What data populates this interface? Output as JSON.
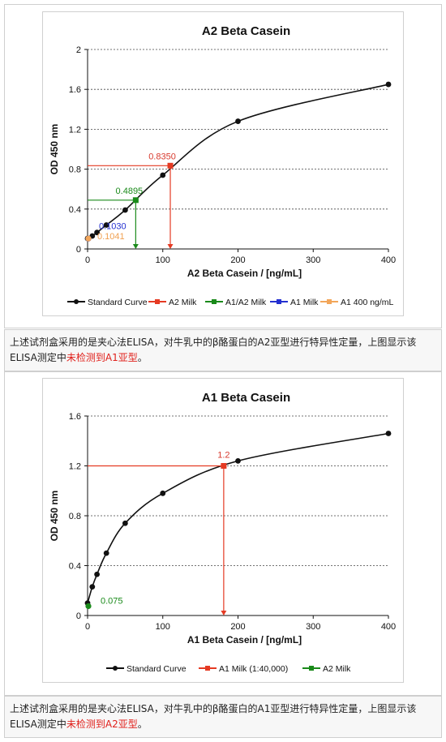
{
  "charts": [
    {
      "title": "A2 Beta Casein",
      "caption_main": "上述试剂盒采用的是夹心法ELISA，对牛乳中的β酪蛋白的A2亚型进行特异性定量，上图显示该ELISA测定中",
      "caption_red": "未检测到A1亚型",
      "caption_tail": "。"
    },
    {
      "title": "A1 Beta Casein",
      "caption_main": "上述试剂盒采用的是夹心法ELISA，对牛乳中的β酪蛋白的A1亚型进行特异性定量，上图显示该ELISA测定中",
      "caption_red": "未检测到A2亚型",
      "caption_tail": "。"
    }
  ],
  "chart_data": [
    {
      "type": "line",
      "title": "A2 Beta Casein",
      "xlabel": "A2 Beta Casein / [ng/mL]",
      "ylabel": "OD 450 nm",
      "xlim": [
        0,
        400
      ],
      "ylim": [
        0,
        2
      ],
      "x_ticks": [
        "0",
        "100",
        "200",
        "300",
        "400"
      ],
      "y_ticks": [
        "0",
        "0.4",
        "0.8",
        "1.2",
        "1.6",
        "2"
      ],
      "grid": "horizontal dashed",
      "legend_position": "bottom",
      "series": [
        {
          "name": "Standard Curve",
          "color": "#111111",
          "x": [
            0,
            6.25,
            12.5,
            25,
            50,
            100,
            200,
            400
          ],
          "y": [
            0.105,
            0.13,
            0.165,
            0.24,
            0.39,
            0.74,
            1.28,
            1.65
          ]
        },
        {
          "name": "A2 Milk",
          "color": "#e53a23",
          "x": [
            110
          ],
          "y": [
            0.835
          ],
          "value_label": "0.8350"
        },
        {
          "name": "A1/A2 Milk",
          "color": "#1a8a1a",
          "x": [
            64
          ],
          "y": [
            0.4895
          ],
          "value_label": "0.4895"
        },
        {
          "name": "A1 Milk",
          "color": "#2430d0",
          "x": [
            0
          ],
          "y": [
            0.103
          ],
          "value_label": "0.1030"
        },
        {
          "name": "A1 400 ng/mL",
          "color": "#f2a65a",
          "x": [
            0
          ],
          "y": [
            0.1041
          ],
          "value_label": "0.1041"
        }
      ]
    },
    {
      "type": "line",
      "title": "A1 Beta Casein",
      "xlabel": "A1 Beta Casein / [ng/mL]",
      "ylabel": "OD 450 nm",
      "xlim": [
        0,
        400
      ],
      "ylim": [
        0,
        1.6
      ],
      "x_ticks": [
        "0",
        "100",
        "200",
        "300",
        "400"
      ],
      "y_ticks": [
        "0",
        "0.4",
        "0.8",
        "1.2",
        "1.6"
      ],
      "grid": "horizontal dashed",
      "legend_position": "bottom",
      "series": [
        {
          "name": "Standard Curve",
          "color": "#111111",
          "x": [
            0,
            6.25,
            12.5,
            25,
            50,
            100,
            200,
            400
          ],
          "y": [
            0.1,
            0.23,
            0.33,
            0.5,
            0.74,
            0.98,
            1.24,
            1.46
          ]
        },
        {
          "name": "A1 Milk (1:40,000)",
          "color": "#e53a23",
          "x": [
            181
          ],
          "y": [
            1.2
          ],
          "value_label": "1.2"
        },
        {
          "name": "A2 Milk",
          "color": "#1a8a1a",
          "x": [
            0
          ],
          "y": [
            0.075
          ],
          "value_label": "0.075"
        }
      ]
    }
  ]
}
